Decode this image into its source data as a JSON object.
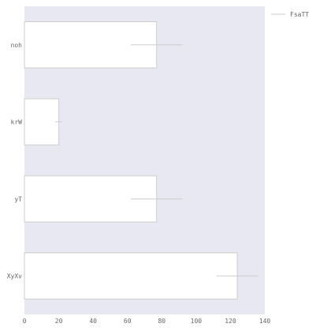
{
  "chart_data": {
    "type": "bar",
    "orientation": "horizontal",
    "categories": [
      "noh",
      "krW",
      "yT",
      "XyXv"
    ],
    "series": [
      {
        "name": "FsaTT",
        "values": [
          77,
          20,
          77,
          124
        ],
        "error": [
          15,
          2,
          15,
          12
        ],
        "color": "#ffffff"
      }
    ],
    "xlim": [
      0,
      140
    ],
    "xticks": [
      0,
      20,
      40,
      60,
      80,
      100,
      120,
      140
    ],
    "title": "",
    "xlabel": "",
    "ylabel": "",
    "grid": false,
    "legend_position": "top-right outside",
    "background_color": "#e8e8f2",
    "bar_edge_color": "#cccccc",
    "error_color": "#cccccc"
  }
}
